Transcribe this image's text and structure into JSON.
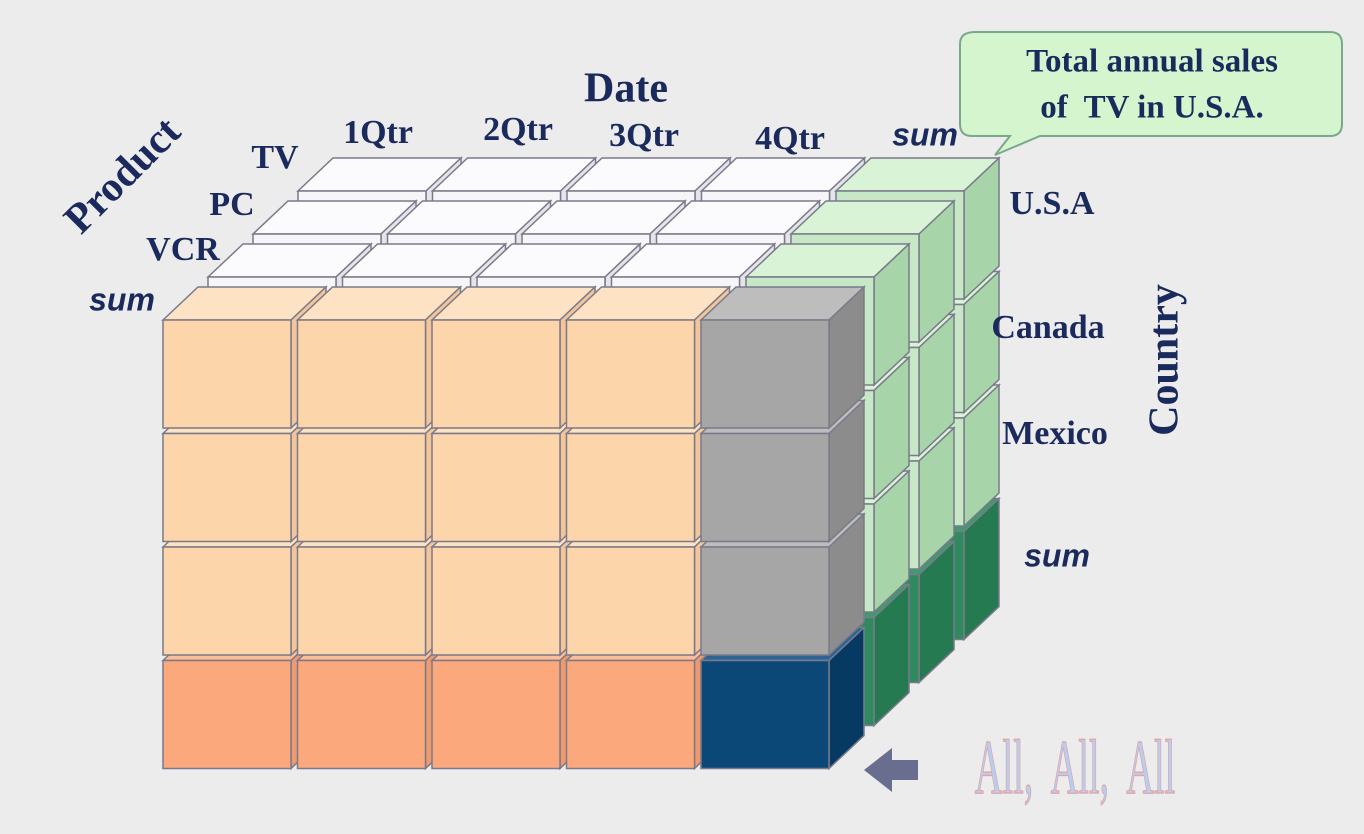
{
  "axis_titles": {
    "date": "Date",
    "product": "Product",
    "country": "Country"
  },
  "date_labels": [
    "1Qtr",
    "2Qtr",
    "3Qtr",
    "4Qtr",
    "sum"
  ],
  "product_labels": [
    "TV",
    "PC",
    "VCR",
    "sum"
  ],
  "country_labels": [
    "U.S.A",
    "Canada",
    "Mexico",
    "sum"
  ],
  "callout": [
    "Total annual sales",
    "of  TV in U.S.A."
  ],
  "all_label": "All,  All,  All"
}
